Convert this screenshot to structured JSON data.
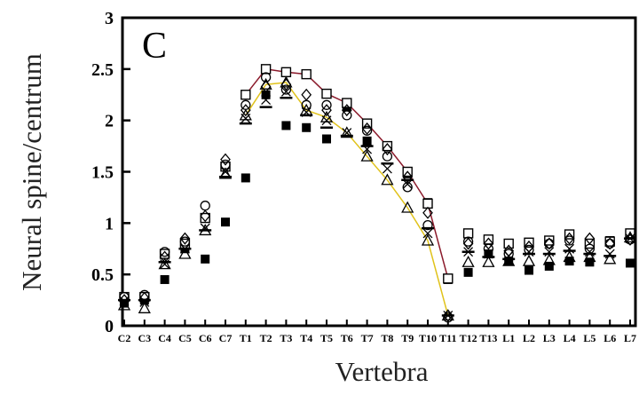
{
  "chart_data": {
    "type": "scatter",
    "panel_label": "C",
    "xlabel": "Vertebra",
    "ylabel": "Neural spine/centrum",
    "ylim": [
      0,
      3
    ],
    "yticks": [
      0,
      0.5,
      1,
      1.5,
      2,
      2.5,
      3
    ],
    "ytick_labels": [
      "0",
      "0.5",
      "1",
      "1.5",
      "2",
      "2.5",
      "3"
    ],
    "grid": false,
    "legend": "none",
    "categories": [
      "C2",
      "C3",
      "C4",
      "C5",
      "C6",
      "C7",
      "T1",
      "T2",
      "T3",
      "T4",
      "T5",
      "T6",
      "T7",
      "T8",
      "T9",
      "T10",
      "T11",
      "T12",
      "T13",
      "L1",
      "L2",
      "L3",
      "L4",
      "L5",
      "L6",
      "L7"
    ],
    "series": [
      {
        "marker": "filled-square",
        "color": "#000000",
        "line": null,
        "values": [
          0.22,
          0.25,
          0.45,
          0.75,
          0.65,
          1.01,
          1.44,
          2.25,
          1.95,
          1.93,
          1.82,
          2.13,
          1.8,
          1.75,
          1.48,
          1.2,
          0.45,
          0.52,
          0.7,
          0.63,
          0.54,
          0.58,
          0.63,
          0.62,
          0.83,
          0.61
        ]
      },
      {
        "marker": "open-square",
        "color": "#000000",
        "line": "#8b1a2b",
        "values": [
          0.28,
          0.28,
          0.7,
          0.8,
          1.05,
          1.55,
          2.25,
          2.5,
          2.47,
          2.45,
          2.26,
          2.17,
          1.97,
          1.75,
          1.5,
          1.19,
          0.46,
          0.9,
          0.84,
          0.8,
          0.81,
          0.83,
          0.89,
          0.8,
          0.82,
          0.9
        ]
      },
      {
        "marker": "open-triangle",
        "color": "#000000",
        "line": "#e0c21a",
        "values": [
          0.2,
          0.17,
          0.6,
          0.7,
          0.93,
          1.48,
          2.05,
          2.35,
          2.37,
          2.1,
          2.03,
          1.88,
          1.65,
          1.42,
          1.15,
          0.83,
          0.1,
          0.62,
          0.62,
          0.63,
          0.63,
          0.64,
          0.67,
          0.67,
          0.65,
          0.86
        ]
      },
      {
        "marker": "open-circle",
        "color": "#000000",
        "line": null,
        "values": [
          0.28,
          0.3,
          0.72,
          0.82,
          1.17,
          1.57,
          2.15,
          2.42,
          2.3,
          2.15,
          2.15,
          2.05,
          1.9,
          1.65,
          1.35,
          0.98,
          0.08,
          0.82,
          0.75,
          0.7,
          0.74,
          0.8,
          0.83,
          0.75,
          0.8,
          0.84
        ]
      },
      {
        "marker": "open-diamond",
        "color": "#000000",
        "line": null,
        "values": [
          0.25,
          0.27,
          0.67,
          0.85,
          1.07,
          1.62,
          2.1,
          2.33,
          2.35,
          2.25,
          2.1,
          2.1,
          1.92,
          1.72,
          1.45,
          1.1,
          0.1,
          0.8,
          0.8,
          0.73,
          0.77,
          0.8,
          0.85,
          0.85,
          0.8,
          0.84
        ]
      },
      {
        "marker": "dash",
        "color": "#000000",
        "line": null,
        "values": [
          0.25,
          0.25,
          0.62,
          0.75,
          0.93,
          1.45,
          1.97,
          2.13,
          2.22,
          2.05,
          1.93,
          1.85,
          1.75,
          1.58,
          1.42,
          0.95,
          0.1,
          0.72,
          0.67,
          0.65,
          0.7,
          0.7,
          0.73,
          0.7,
          0.68,
          0.85
        ]
      },
      {
        "marker": "cross",
        "color": "#000000",
        "line": null,
        "values": [
          0.24,
          0.23,
          0.6,
          0.75,
          0.95,
          1.5,
          2.02,
          2.2,
          2.28,
          2.08,
          2.0,
          1.88,
          1.72,
          1.53,
          1.38,
          0.9,
          0.1,
          0.72,
          0.7,
          0.68,
          0.72,
          0.72,
          0.75,
          0.72,
          0.7,
          0.85
        ]
      }
    ]
  }
}
